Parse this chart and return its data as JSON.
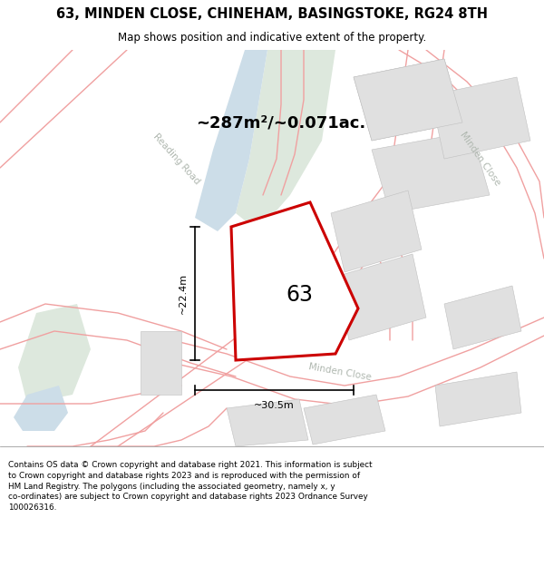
{
  "title_line1": "63, MINDEN CLOSE, CHINEHAM, BASINGSTOKE, RG24 8TH",
  "title_line2": "Map shows position and indicative extent of the property.",
  "area_text": "~287m²/~0.071ac.",
  "label_63": "63",
  "dim_width": "~30.5m",
  "dim_height": "~22.4m",
  "footer_text": "Contains OS data © Crown copyright and database right 2021. This information is subject to Crown copyright and database rights 2023 and is reproduced with the permission of HM Land Registry. The polygons (including the associated geometry, namely x, y co-ordinates) are subject to Crown copyright and database rights 2023 Ordnance Survey 100026316.",
  "map_bg": "#f8f8f6",
  "road_line_color": "#f0a0a0",
  "road_fill": "#f5e8e8",
  "green_color": "#dde8dd",
  "blue_color": "#ccdde8",
  "building_fill": "#e0e0e0",
  "building_edge": "#c0c0c0",
  "plot_color": "#cc0000",
  "plot_fill": "#ffffff",
  "label_color": "#b0b8b0",
  "text_color": "#000000"
}
